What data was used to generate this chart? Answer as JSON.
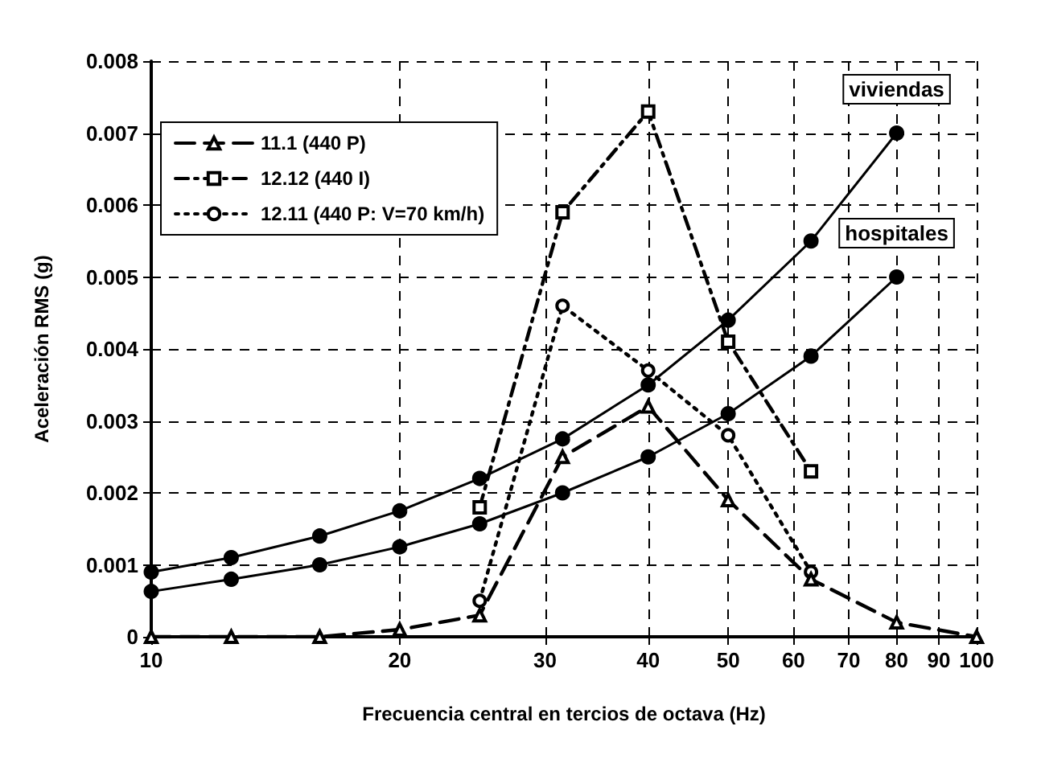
{
  "chart_data": {
    "type": "line",
    "xlabel": "Frecuencia central en tercios de octava (Hz)",
    "ylabel": "Aceleración RMS (g)",
    "log": "x",
    "xlim": [
      10,
      100
    ],
    "xticks": [
      10,
      20,
      30,
      40,
      50,
      60,
      70,
      80,
      90,
      100
    ],
    "ylim": [
      0,
      0.008
    ],
    "yticks": [
      0,
      0.001,
      0.002,
      0.003,
      0.004,
      0.005,
      0.006,
      0.007,
      0.008
    ],
    "grid": true,
    "legend": "top left",
    "series": [
      {
        "name": "11.1 (440 P)",
        "color": "#000000",
        "marker": "triangle",
        "line_style": "dashed",
        "x": [
          10,
          12.5,
          16,
          20,
          25,
          31.5,
          40,
          50,
          63,
          80,
          100
        ],
        "values": [
          0,
          0,
          0,
          0.0001,
          0.0003,
          0.0025,
          0.0032,
          0.0019,
          0.0008,
          0.0002,
          0
        ]
      },
      {
        "name": "12.12 (440 I)",
        "color": "#000000",
        "marker": "square",
        "line_style": "dashdot",
        "x": [
          25,
          31.5,
          40,
          50,
          63
        ],
        "values": [
          0.0018,
          0.0059,
          0.0073,
          0.0041,
          0.0023
        ]
      },
      {
        "name": "12.11 (440 P: V=70 km/h)",
        "color": "#000000",
        "marker": "circle",
        "line_style": "dotted",
        "x": [
          25,
          31.5,
          40,
          50,
          63
        ],
        "values": [
          0.0005,
          0.0046,
          0.0037,
          0.0028,
          0.0009
        ]
      },
      {
        "name": "viviendas",
        "color": "#000000",
        "marker": "circle",
        "line_style": "solid",
        "x": [
          10,
          12.5,
          16,
          20,
          25,
          31.5,
          40,
          50,
          63,
          80
        ],
        "values": [
          0.0009,
          0.0011,
          0.0014,
          0.00175,
          0.0022,
          0.00275,
          0.0035,
          0.0044,
          0.0055,
          0.007
        ]
      },
      {
        "name": "hospitales",
        "color": "#000000",
        "marker": "circle",
        "line_style": "solid",
        "x": [
          10,
          12.5,
          16,
          20,
          25,
          31.5,
          40,
          50,
          63,
          80
        ],
        "values": [
          0.00063,
          0.0008,
          0.001,
          0.00125,
          0.00157,
          0.002,
          0.0025,
          0.0031,
          0.0039,
          0.005
        ]
      }
    ]
  }
}
